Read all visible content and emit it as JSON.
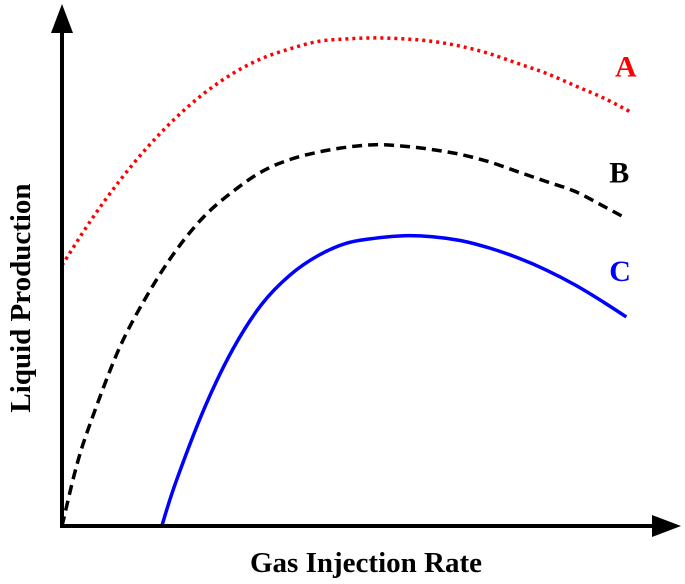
{
  "chart_data": {
    "type": "line",
    "xlabel": "Gas Injection Rate",
    "ylabel": "Liquid Production",
    "grid": false,
    "axis_ticks": false,
    "xlim": [
      0,
      10
    ],
    "ylim": [
      0,
      10
    ],
    "series": [
      {
        "name": "A",
        "color": "#ff0000",
        "style": "dotted",
        "x": [
          0,
          0.5,
          1,
          1.5,
          2,
          2.5,
          3,
          3.5,
          4,
          4.5,
          5,
          5.5,
          6,
          6.5,
          7,
          7.5,
          8,
          8.5,
          9,
          9.5,
          10
        ],
        "y": [
          5.3,
          6.2,
          7.0,
          7.7,
          8.3,
          8.8,
          9.2,
          9.5,
          9.7,
          9.85,
          9.9,
          9.92,
          9.9,
          9.85,
          9.75,
          9.6,
          9.4,
          9.2,
          8.95,
          8.7,
          8.4
        ]
      },
      {
        "name": "B",
        "color": "#000000",
        "style": "dashed",
        "x": [
          0,
          0.25,
          0.5,
          1,
          1.5,
          2,
          2.5,
          3,
          3.5,
          4,
          4.5,
          5,
          5.5,
          6,
          6.5,
          7,
          7.5,
          8,
          8.5,
          9,
          9.5,
          9.9
        ],
        "y": [
          0,
          1.2,
          2.1,
          3.6,
          4.7,
          5.6,
          6.3,
          6.8,
          7.2,
          7.45,
          7.6,
          7.7,
          7.75,
          7.72,
          7.65,
          7.55,
          7.4,
          7.2,
          7.0,
          6.8,
          6.5,
          6.25
        ]
      },
      {
        "name": "C",
        "color": "#0000ff",
        "style": "solid",
        "x": [
          1.75,
          2,
          2.5,
          3,
          3.5,
          4,
          4.5,
          5,
          5.5,
          6,
          6.5,
          7,
          7.5,
          8,
          8.5,
          9,
          9.5,
          9.9
        ],
        "y": [
          0,
          0.9,
          2.4,
          3.6,
          4.5,
          5.1,
          5.5,
          5.75,
          5.85,
          5.9,
          5.88,
          5.8,
          5.65,
          5.45,
          5.2,
          4.9,
          4.55,
          4.25
        ]
      }
    ]
  }
}
